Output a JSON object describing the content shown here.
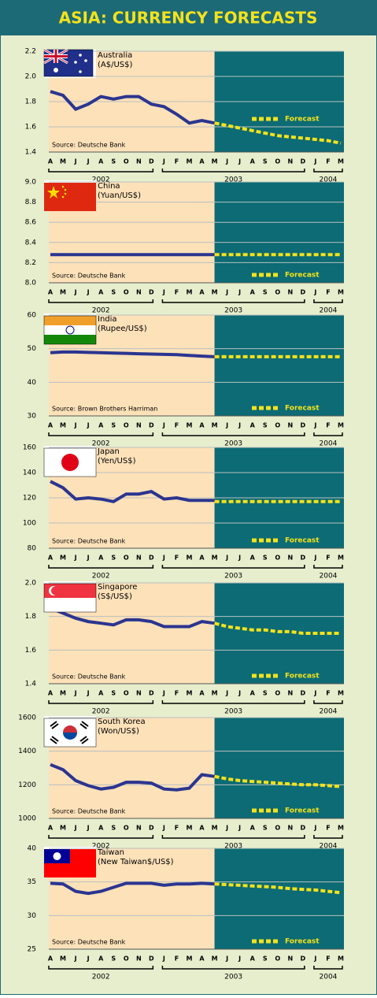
{
  "title": "ASIA: CURRENCY FORECASTS",
  "chart_data": [
    {
      "type": "line",
      "title": "Australia",
      "subtitle": "(A$/US$)",
      "source": "Source: Deutsche Bank",
      "legend": "upper right",
      "categories": [
        "A",
        "M",
        "J",
        "J",
        "A",
        "S",
        "O",
        "N",
        "D",
        "J",
        "F",
        "M",
        "A",
        "M",
        "J",
        "J",
        "A",
        "S",
        "O",
        "N",
        "D",
        "J",
        "F",
        "M"
      ],
      "years": [
        "2002",
        "2003",
        "2004"
      ],
      "ylim": [
        1.4,
        2.2
      ],
      "yticks": [
        1.4,
        1.6,
        1.8,
        {
          "value": 2,
          "label": "2.0"
        },
        2.2
      ],
      "grid": true,
      "series": [
        {
          "color": "#2b3590",
          "values": [
            1.88,
            1.85,
            1.74,
            1.78,
            1.84,
            1.82,
            1.84,
            1.84,
            1.78,
            1.76,
            1.7,
            1.63,
            1.65,
            1.63,
            null,
            null,
            null,
            null,
            null,
            null,
            null,
            null,
            null,
            null
          ]
        },
        {
          "name": "Forecast",
          "color": "#f3e21c",
          "values": [
            null,
            null,
            null,
            null,
            null,
            null,
            null,
            null,
            null,
            null,
            null,
            null,
            null,
            1.63,
            1.61,
            1.59,
            1.57,
            1.55,
            1.53,
            1.52,
            1.51,
            1.5,
            1.49,
            1.47
          ]
        }
      ]
    },
    {
      "type": "line",
      "title": "China",
      "subtitle": "(Yuan/US$)",
      "source": "Source: Deutsche Bank",
      "legend": "lower right",
      "categories": [
        "A",
        "M",
        "J",
        "J",
        "A",
        "S",
        "O",
        "N",
        "D",
        "J",
        "F",
        "M",
        "A",
        "M",
        "J",
        "J",
        "A",
        "S",
        "O",
        "N",
        "D",
        "J",
        "F",
        "M"
      ],
      "years": [
        "2002",
        "2003",
        "2004"
      ],
      "ylim": [
        8.0,
        9.0
      ],
      "yticks": [
        {
          "value": 8,
          "label": "8.0"
        },
        8.2,
        8.4,
        8.6,
        8.8,
        {
          "value": 9,
          "label": "9.0"
        }
      ],
      "grid": true,
      "series": [
        {
          "color": "#2b3590",
          "values": [
            8.28,
            8.28,
            8.28,
            8.28,
            8.28,
            8.28,
            8.28,
            8.28,
            8.28,
            8.28,
            8.28,
            8.28,
            8.28,
            8.28,
            null,
            null,
            null,
            null,
            null,
            null,
            null,
            null,
            null,
            null
          ]
        },
        {
          "name": "Forecast",
          "color": "#f3e21c",
          "values": [
            null,
            null,
            null,
            null,
            null,
            null,
            null,
            null,
            null,
            null,
            null,
            null,
            null,
            8.28,
            8.28,
            8.28,
            8.28,
            8.28,
            8.28,
            8.28,
            8.28,
            8.28,
            8.28,
            8.28
          ]
        }
      ]
    },
    {
      "type": "line",
      "title": "India",
      "subtitle": "(Rupee/US$)",
      "source": "Source: Brown Brothers Harriman",
      "legend": "lower right",
      "categories": [
        "A",
        "M",
        "J",
        "J",
        "A",
        "S",
        "O",
        "N",
        "D",
        "J",
        "F",
        "M",
        "A",
        "M",
        "J",
        "J",
        "A",
        "S",
        "O",
        "N",
        "D",
        "J",
        "F",
        "M"
      ],
      "years": [
        "2002",
        "2003",
        "2004"
      ],
      "ylim": [
        30,
        60
      ],
      "yticks": [
        30,
        40,
        50,
        60
      ],
      "grid": true,
      "series": [
        {
          "color": "#2b3590",
          "values": [
            48.8,
            49.0,
            49.0,
            48.9,
            48.8,
            48.7,
            48.6,
            48.5,
            48.4,
            48.3,
            48.2,
            48.0,
            47.8,
            47.6,
            null,
            null,
            null,
            null,
            null,
            null,
            null,
            null,
            null,
            null
          ]
        },
        {
          "name": "Forecast",
          "color": "#f3e21c",
          "values": [
            null,
            null,
            null,
            null,
            null,
            null,
            null,
            null,
            null,
            null,
            null,
            null,
            null,
            47.6,
            47.6,
            47.6,
            47.6,
            47.6,
            47.6,
            47.6,
            47.6,
            47.6,
            47.6,
            47.6
          ]
        }
      ]
    },
    {
      "type": "line",
      "title": "Japan",
      "subtitle": "(Yen/US$)",
      "source": "Source: Deutsche Bank",
      "legend": "lower right",
      "categories": [
        "A",
        "M",
        "J",
        "J",
        "A",
        "S",
        "O",
        "N",
        "D",
        "J",
        "F",
        "M",
        "A",
        "M",
        "J",
        "J",
        "A",
        "S",
        "O",
        "N",
        "D",
        "J",
        "F",
        "M"
      ],
      "years": [
        "2002",
        "2003",
        "2004"
      ],
      "ylim": [
        80,
        160
      ],
      "yticks": [
        80,
        100,
        120,
        140,
        160
      ],
      "grid": true,
      "series": [
        {
          "color": "#2b3590",
          "values": [
            133,
            128,
            119,
            120,
            119,
            117,
            123,
            123,
            125,
            119,
            120,
            118,
            118,
            118,
            null,
            null,
            null,
            null,
            null,
            null,
            null,
            null,
            null,
            null
          ]
        },
        {
          "name": "Forecast",
          "color": "#f3e21c",
          "values": [
            null,
            null,
            null,
            null,
            null,
            null,
            null,
            null,
            null,
            null,
            null,
            null,
            null,
            117,
            117,
            117,
            117,
            117,
            117,
            117,
            117,
            117,
            117,
            117
          ]
        }
      ]
    },
    {
      "type": "line",
      "title": "Singapore",
      "subtitle": "(S$/US$)",
      "source": "Source: Deutsche Bank",
      "legend": "lower right",
      "categories": [
        "A",
        "M",
        "J",
        "J",
        "A",
        "S",
        "O",
        "N",
        "D",
        "J",
        "F",
        "M",
        "A",
        "M",
        "J",
        "J",
        "A",
        "S",
        "O",
        "N",
        "D",
        "J",
        "F",
        "M"
      ],
      "years": [
        "2002",
        "2003",
        "2004"
      ],
      "ylim": [
        1.4,
        2.0
      ],
      "yticks": [
        1.4,
        1.6,
        1.8,
        {
          "value": 2,
          "label": "2.0"
        }
      ],
      "grid": true,
      "series": [
        {
          "color": "#2b3590",
          "values": [
            1.85,
            1.82,
            1.79,
            1.77,
            1.76,
            1.75,
            1.78,
            1.78,
            1.77,
            1.74,
            1.74,
            1.74,
            1.77,
            1.76,
            null,
            null,
            null,
            null,
            null,
            null,
            null,
            null,
            null,
            null
          ]
        },
        {
          "name": "Forecast",
          "color": "#f3e21c",
          "values": [
            null,
            null,
            null,
            null,
            null,
            null,
            null,
            null,
            null,
            null,
            null,
            null,
            null,
            1.76,
            1.74,
            1.73,
            1.72,
            1.72,
            1.71,
            1.71,
            1.7,
            1.7,
            1.7,
            1.7
          ]
        }
      ]
    },
    {
      "type": "line",
      "title": "South Korea",
      "subtitle": "(Won/US$)",
      "source": "Source: Deutsche Bank",
      "legend": "lower right",
      "categories": [
        "A",
        "M",
        "J",
        "J",
        "A",
        "S",
        "O",
        "N",
        "D",
        "J",
        "F",
        "M",
        "A",
        "M",
        "J",
        "J",
        "A",
        "S",
        "O",
        "N",
        "D",
        "J",
        "F",
        "M"
      ],
      "years": [
        "2002",
        "2003",
        "2004"
      ],
      "ylim": [
        1000,
        1600
      ],
      "yticks": [
        1000,
        1200,
        1400,
        1600
      ],
      "grid": true,
      "series": [
        {
          "color": "#2b3590",
          "values": [
            1320,
            1290,
            1225,
            1195,
            1175,
            1185,
            1215,
            1215,
            1210,
            1175,
            1170,
            1180,
            1260,
            1250,
            null,
            null,
            null,
            null,
            null,
            null,
            null,
            null,
            null,
            null
          ]
        },
        {
          "name": "Forecast",
          "color": "#f3e21c",
          "values": [
            null,
            null,
            null,
            null,
            null,
            null,
            null,
            null,
            null,
            null,
            null,
            null,
            null,
            1250,
            1235,
            1225,
            1220,
            1215,
            1210,
            1205,
            1200,
            1200,
            1195,
            1190
          ]
        }
      ]
    },
    {
      "type": "line",
      "title": "Taiwan",
      "subtitle": "(New Taiwan$/US$)",
      "source": "Source: Deutsche Bank",
      "legend": "lower right",
      "categories": [
        "A",
        "M",
        "J",
        "J",
        "A",
        "S",
        "O",
        "N",
        "D",
        "J",
        "F",
        "M",
        "A",
        "M",
        "J",
        "J",
        "A",
        "S",
        "O",
        "N",
        "D",
        "J",
        "F",
        "M"
      ],
      "years": [
        "2002",
        "2003",
        "2004"
      ],
      "ylim": [
        25,
        40
      ],
      "yticks": [
        25,
        30,
        35,
        40
      ],
      "grid": true,
      "series": [
        {
          "color": "#2b3590",
          "values": [
            34.8,
            34.7,
            33.6,
            33.3,
            33.6,
            34.2,
            34.8,
            34.8,
            34.8,
            34.5,
            34.7,
            34.7,
            34.8,
            34.7,
            null,
            null,
            null,
            null,
            null,
            null,
            null,
            null,
            null,
            null
          ]
        },
        {
          "name": "Forecast",
          "color": "#f3e21c",
          "values": [
            null,
            null,
            null,
            null,
            null,
            null,
            null,
            null,
            null,
            null,
            null,
            null,
            null,
            34.7,
            34.6,
            34.5,
            34.4,
            34.3,
            34.2,
            34.0,
            33.9,
            33.8,
            33.6,
            33.4
          ]
        }
      ]
    }
  ]
}
